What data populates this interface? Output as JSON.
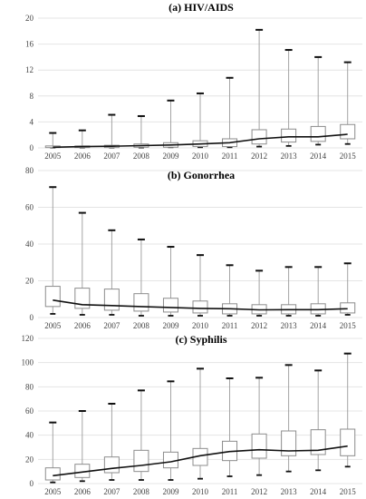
{
  "chart_data": [
    {
      "type": "box",
      "title": "(a) HIV/AIDS",
      "x": [
        "2005",
        "2006",
        "2007",
        "2008",
        "2009",
        "2010",
        "2011",
        "2012",
        "2013",
        "2014",
        "2015"
      ],
      "ylim": [
        0,
        20
      ],
      "yticks": [
        0,
        4,
        8,
        12,
        16,
        20
      ],
      "grid": true,
      "boxes": [
        {
          "min": 0.05,
          "q1": 0.05,
          "q3": 0.3,
          "max": 2.3
        },
        {
          "min": 0.05,
          "q1": 0.05,
          "q3": 0.3,
          "max": 2.7
        },
        {
          "min": 0.05,
          "q1": 0.05,
          "q3": 0.4,
          "max": 5.1
        },
        {
          "min": 0.05,
          "q1": 0.1,
          "q3": 0.6,
          "max": 4.9
        },
        {
          "min": 0.1,
          "q1": 0.1,
          "q3": 0.8,
          "max": 7.3
        },
        {
          "min": 0.1,
          "q1": 0.2,
          "q3": 1.1,
          "max": 8.4
        },
        {
          "min": 0.1,
          "q1": 0.2,
          "q3": 1.4,
          "max": 10.8
        },
        {
          "min": 0.2,
          "q1": 0.6,
          "q3": 2.8,
          "max": 18.2
        },
        {
          "min": 0.3,
          "q1": 0.9,
          "q3": 2.9,
          "max": 15.1
        },
        {
          "min": 0.5,
          "q1": 1.0,
          "q3": 3.3,
          "max": 14.0
        },
        {
          "min": 0.6,
          "q1": 1.4,
          "q3": 3.6,
          "max": 13.2
        }
      ],
      "trend": [
        0.1,
        0.2,
        0.25,
        0.35,
        0.45,
        0.6,
        0.8,
        1.4,
        1.7,
        1.7,
        2.1
      ]
    },
    {
      "type": "box",
      "title": "(b) Gonorrhea",
      "x": [
        "2005",
        "2006",
        "2007",
        "2008",
        "2009",
        "2010",
        "2011",
        "2012",
        "2013",
        "2014",
        "2015"
      ],
      "ylim": [
        0,
        80
      ],
      "yticks": [
        0,
        20,
        40,
        60,
        80
      ],
      "grid": true,
      "boxes": [
        {
          "min": 2.0,
          "q1": 6.0,
          "q3": 17.0,
          "max": 71.0
        },
        {
          "min": 1.5,
          "q1": 5.0,
          "q3": 16.0,
          "max": 57.0
        },
        {
          "min": 1.5,
          "q1": 4.0,
          "q3": 15.5,
          "max": 47.5
        },
        {
          "min": 1.0,
          "q1": 3.5,
          "q3": 13.0,
          "max": 42.5
        },
        {
          "min": 1.0,
          "q1": 3.0,
          "q3": 10.5,
          "max": 38.5
        },
        {
          "min": 1.0,
          "q1": 2.5,
          "q3": 9.0,
          "max": 34.0
        },
        {
          "min": 1.0,
          "q1": 2.0,
          "q3": 7.5,
          "max": 28.5
        },
        {
          "min": 1.0,
          "q1": 2.0,
          "q3": 7.0,
          "max": 25.5
        },
        {
          "min": 1.0,
          "q1": 2.0,
          "q3": 7.0,
          "max": 27.5
        },
        {
          "min": 1.0,
          "q1": 2.0,
          "q3": 7.5,
          "max": 27.5
        },
        {
          "min": 1.5,
          "q1": 2.5,
          "q3": 8.0,
          "max": 29.5
        }
      ],
      "trend": [
        9.5,
        7.0,
        6.5,
        6.0,
        5.5,
        5.0,
        4.8,
        4.2,
        4.3,
        4.3,
        4.8
      ]
    },
    {
      "type": "box",
      "title": "(c) Syphilis",
      "x": [
        "2005",
        "2006",
        "2007",
        "2008",
        "2009",
        "2010",
        "2011",
        "2012",
        "2013",
        "2014",
        "2015"
      ],
      "ylim": [
        0,
        120
      ],
      "yticks": [
        0,
        20,
        40,
        60,
        80,
        100,
        120
      ],
      "grid": true,
      "boxes": [
        {
          "min": 1.0,
          "q1": 3.0,
          "q3": 13.0,
          "max": 50.5
        },
        {
          "min": 2.0,
          "q1": 5.0,
          "q3": 16.0,
          "max": 60.0
        },
        {
          "min": 3.0,
          "q1": 9.0,
          "q3": 22.0,
          "max": 66.0
        },
        {
          "min": 3.0,
          "q1": 10.0,
          "q3": 27.5,
          "max": 77.0
        },
        {
          "min": 3.0,
          "q1": 13.0,
          "q3": 26.0,
          "max": 84.5
        },
        {
          "min": 4.0,
          "q1": 15.0,
          "q3": 29.0,
          "max": 95.0
        },
        {
          "min": 6.0,
          "q1": 19.0,
          "q3": 35.0,
          "max": 87.0
        },
        {
          "min": 7.0,
          "q1": 21.0,
          "q3": 41.0,
          "max": 87.5
        },
        {
          "min": 10.0,
          "q1": 23.0,
          "q3": 43.5,
          "max": 98.0
        },
        {
          "min": 11.0,
          "q1": 24.0,
          "q3": 44.5,
          "max": 93.5
        },
        {
          "min": 14.0,
          "q1": 23.0,
          "q3": 45.0,
          "max": 107.5
        }
      ],
      "trend": [
        6.5,
        9.5,
        12.5,
        15.0,
        18.0,
        23.0,
        26.5,
        28.0,
        27.0,
        27.5,
        31.0
      ]
    }
  ]
}
